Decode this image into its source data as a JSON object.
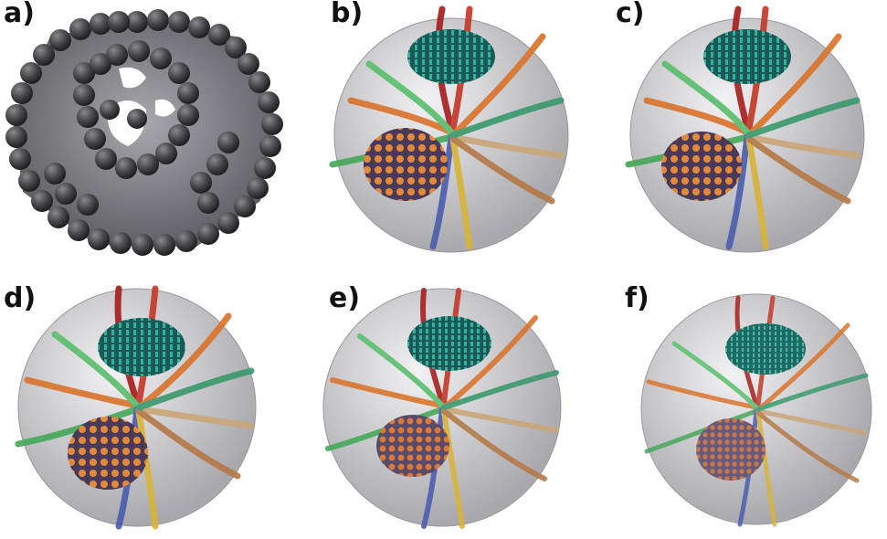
{
  "figure": {
    "panels": [
      {
        "id": "a",
        "label": "a)",
        "kind": "bead-shell"
      },
      {
        "id": "b",
        "label": "b)",
        "kind": "fiber-bundles"
      },
      {
        "id": "c",
        "label": "c)",
        "kind": "fiber-bundles"
      },
      {
        "id": "d",
        "label": "d)",
        "kind": "fiber-bundles"
      },
      {
        "id": "e",
        "label": "e)",
        "kind": "fiber-bundles"
      },
      {
        "id": "f",
        "label": "f)",
        "kind": "fiber-bundles"
      }
    ]
  },
  "colors": {
    "background": "#ffffff",
    "bead": "#3f3f42",
    "sphere": "#c9c9cd",
    "bundle_red": "#a82020",
    "bundle_teal": "#1f7f78",
    "bundle_orange": "#d9752f",
    "bundle_green": "#47a85a",
    "bundle_blue": "#4d5fae",
    "bundle_yellow": "#d8b43c",
    "bundle_tan": "#c9a77a"
  }
}
